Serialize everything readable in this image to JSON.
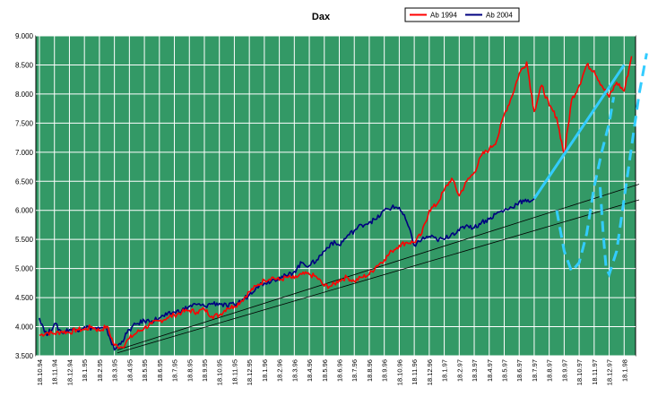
{
  "chart_data": {
    "type": "line",
    "title": "Dax",
    "xlabel": "",
    "ylabel": "",
    "ylim": [
      3500,
      9000
    ],
    "yticks": [
      "3.500",
      "4.000",
      "4.500",
      "5.000",
      "5.500",
      "6.000",
      "6.500",
      "7.000",
      "7.500",
      "8.000",
      "8.500",
      "9.000"
    ],
    "xticks": [
      "18.10.94",
      "18.11.94",
      "18.12.94",
      "18.1.95",
      "18.2.95",
      "18.3.95",
      "18.4.95",
      "18.5.95",
      "18.6.95",
      "18.7.95",
      "18.8.95",
      "18.9.95",
      "18.10.95",
      "18.11.95",
      "18.12.95",
      "18.1.96",
      "18.2.96",
      "18.3.96",
      "18.4.96",
      "18.5.96",
      "18.6.96",
      "18.7.96",
      "18.8.96",
      "18.9.96",
      "18.10.96",
      "18.11.96",
      "18.12.96",
      "18.1.97",
      "18.2.97",
      "18.3.97",
      "18.4.97",
      "18.5.97",
      "18.6.97",
      "18.7.97",
      "18.8.97",
      "18.9.97",
      "18.10.97",
      "18.11.97",
      "18.12.97",
      "18.1.98"
    ],
    "grid": true,
    "legend_position": "top-right",
    "colors": {
      "plot_bg": "#339966",
      "grid": "#ffffff",
      "ab1994": "#ff0000",
      "ab2004": "#000080",
      "forecast": "#33ccff",
      "trend": "#000000"
    },
    "series": [
      {
        "name": "Ab 1994",
        "color": "#ff0000",
        "x": [
          0,
          0.5,
          1,
          1.5,
          2,
          2.5,
          3,
          3.5,
          4,
          4.5,
          5,
          5.5,
          6,
          6.5,
          7,
          7.5,
          8,
          8.5,
          9,
          9.5,
          10,
          10.5,
          11,
          11.5,
          12,
          12.5,
          13,
          13.5,
          14,
          14.5,
          15,
          15.5,
          16,
          16.5,
          17,
          17.5,
          18,
          18.5,
          19,
          19.5,
          20,
          20.5,
          21,
          21.5,
          22,
          22.5,
          23,
          23.5,
          24,
          24.5,
          25,
          25.5,
          26,
          26.5,
          27,
          27.5,
          28,
          28.5,
          29,
          29.5,
          30,
          30.5,
          31,
          31.5,
          32,
          32.5,
          33,
          33.5,
          34,
          34.5,
          35,
          35.5,
          36,
          36.5,
          37,
          37.5,
          38,
          38.5,
          39,
          39.5
        ],
        "values": [
          3850,
          3900,
          3880,
          3920,
          3900,
          3950,
          3950,
          4000,
          3930,
          4010,
          3680,
          3650,
          3800,
          3900,
          3980,
          4050,
          4100,
          4150,
          4200,
          4250,
          4280,
          4250,
          4300,
          4180,
          4200,
          4320,
          4350,
          4450,
          4600,
          4700,
          4800,
          4850,
          4800,
          4850,
          4830,
          4900,
          4900,
          4850,
          4700,
          4700,
          4800,
          4850,
          4780,
          4850,
          4900,
          5050,
          5150,
          5300,
          5400,
          5450,
          5450,
          5600,
          6000,
          6100,
          6350,
          6550,
          6250,
          6500,
          6650,
          6950,
          7050,
          7200,
          7650,
          7950,
          8350,
          8550,
          7700,
          8150,
          7800,
          7600,
          6950,
          7900,
          8150,
          8500,
          8400,
          8150,
          7950,
          8200,
          8050,
          8650
        ]
      },
      {
        "name": "Ab 2004",
        "color": "#000080",
        "x": [
          0,
          0.5,
          1,
          1.5,
          2,
          2.5,
          3,
          3.5,
          4,
          4.5,
          5,
          5.5,
          6,
          6.5,
          7,
          7.5,
          8,
          8.5,
          9,
          9.5,
          10,
          10.5,
          11,
          11.5,
          12,
          12.5,
          13,
          13.5,
          14,
          14.5,
          15,
          15.5,
          16,
          16.5,
          17,
          17.5,
          18,
          18.5,
          19,
          19.5,
          20,
          20.5,
          21,
          21.5,
          22,
          22.5,
          23,
          23.5,
          24,
          24.5,
          25,
          25.5,
          26,
          26.5,
          27,
          27.5,
          28,
          28.5,
          29,
          29.5,
          30,
          30.5,
          31,
          31.5,
          32,
          32.5,
          33
        ],
        "values": [
          4150,
          3850,
          4050,
          3900,
          3950,
          3950,
          4000,
          3980,
          3970,
          3950,
          3600,
          3750,
          3950,
          4050,
          4100,
          4100,
          4150,
          4200,
          4250,
          4280,
          4350,
          4380,
          4350,
          4400,
          4400,
          4350,
          4380,
          4450,
          4550,
          4700,
          4750,
          4800,
          4850,
          4870,
          4950,
          5100,
          5050,
          5150,
          5300,
          5450,
          5400,
          5550,
          5650,
          5750,
          5800,
          5850,
          6000,
          6050,
          6050,
          5800,
          5400,
          5500,
          5550,
          5500,
          5500,
          5600,
          5650,
          5750,
          5700,
          5800,
          5850,
          5950,
          6000,
          6050,
          6150,
          6150,
          6200
        ]
      }
    ],
    "trendlines": [
      {
        "from": [
          5.2,
          3600
        ],
        "to": [
          40,
          6450
        ]
      },
      {
        "from": [
          5.2,
          3550
        ],
        "to": [
          40,
          6180
        ]
      }
    ],
    "forecast_solid": [
      [
        33,
        6200
      ],
      [
        39,
        8500
      ]
    ],
    "forecast_dashed": [
      [
        [
          34.5,
          6000
        ],
        [
          35,
          5300
        ],
        [
          35.5,
          4950
        ],
        [
          36,
          5100
        ],
        [
          36.5,
          5600
        ],
        [
          37,
          6400
        ],
        [
          37.5,
          7000
        ],
        [
          38,
          7500
        ],
        [
          38.3,
          7950
        ]
      ],
      [
        [
          37.4,
          6400
        ],
        [
          37.6,
          5600
        ],
        [
          37.8,
          5000
        ],
        [
          38,
          4900
        ],
        [
          38.5,
          5300
        ],
        [
          39,
          6200
        ],
        [
          39.5,
          7100
        ],
        [
          40,
          8000
        ],
        [
          40.5,
          8700
        ]
      ]
    ]
  }
}
